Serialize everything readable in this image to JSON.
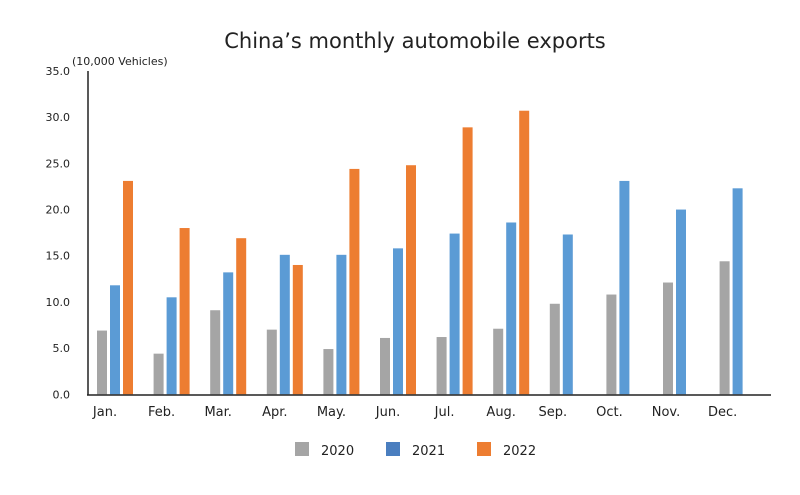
{
  "chart_data": {
    "type": "bar",
    "title": "China’s monthly automobile exports",
    "ylabel": "(10,000 Vehicles)",
    "xlabel": "",
    "ylim": [
      0,
      35
    ],
    "yticks": [
      "0.0",
      "5.0",
      "10.0",
      "15.0",
      "20.0",
      "25.0",
      "30.0",
      "35.0"
    ],
    "grid": false,
    "legend": "bottom",
    "categories": [
      "Jan.",
      "Feb.",
      "Mar.",
      "Apr.",
      "May.",
      "Jun.",
      "Jul.",
      "Aug.",
      "Sep.",
      "Oct.",
      "Nov.",
      "Dec."
    ],
    "series": [
      {
        "name": "2020",
        "color": "#a5a5a5",
        "legend_color": "#a5a5a5",
        "values": [
          6.9,
          4.4,
          9.1,
          7.0,
          4.9,
          6.1,
          6.2,
          7.1,
          9.8,
          10.8,
          12.1,
          14.4
        ]
      },
      {
        "name": "2021",
        "color": "#5b9bd5",
        "legend_color": "#4a7ebf",
        "values": [
          11.8,
          10.5,
          13.2,
          15.1,
          15.1,
          15.8,
          17.4,
          18.6,
          17.3,
          23.1,
          20.0,
          22.3
        ]
      },
      {
        "name": "2022",
        "color": "#ed7d31",
        "legend_color": "#ed7d31",
        "values": [
          23.1,
          18.0,
          16.9,
          14.0,
          24.4,
          24.8,
          28.9,
          30.7,
          null,
          null,
          null,
          null
        ]
      }
    ]
  }
}
